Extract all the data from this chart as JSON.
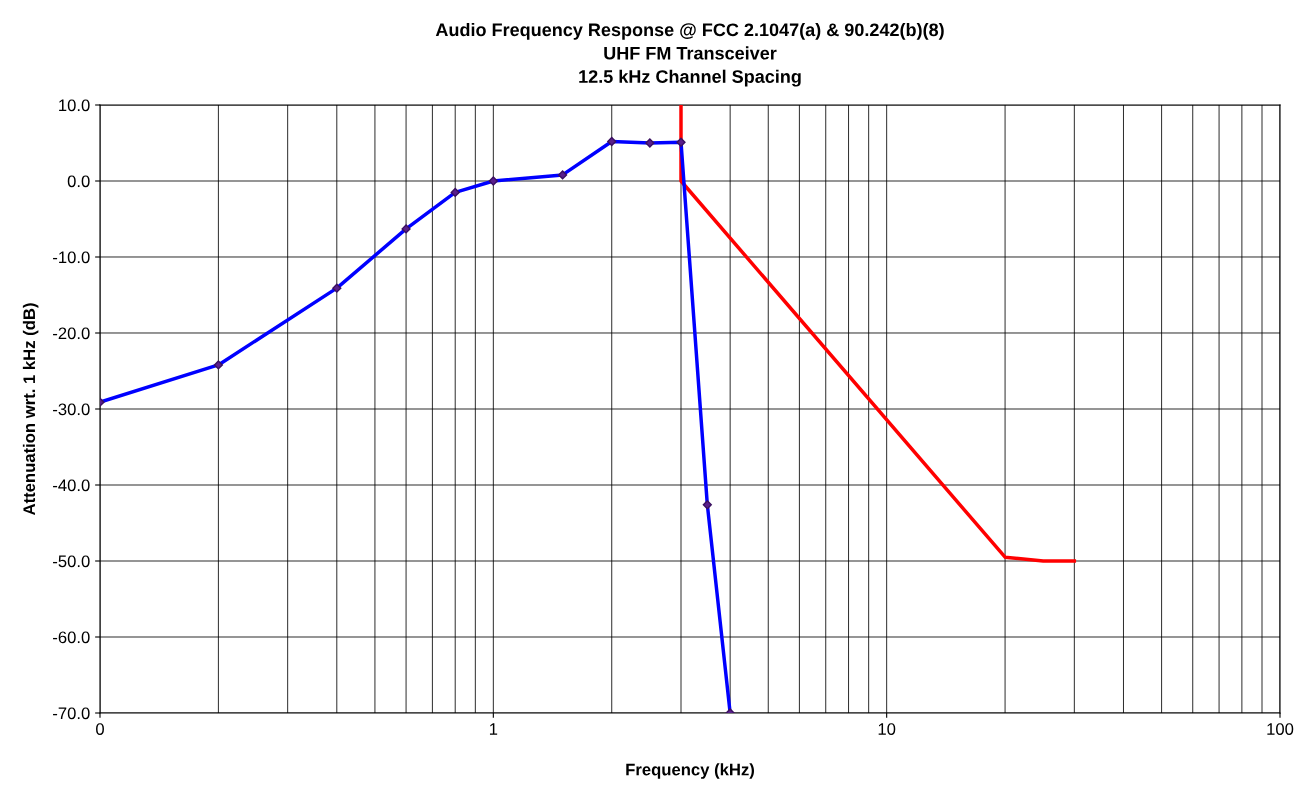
{
  "chart_data": {
    "type": "line",
    "title": "Audio Frequency Response @ FCC 2.1047(a) & 90.242(b)(8)\nUHF FM Transceiver\n12.5 kHz Channel Spacing",
    "xlabel": "Frequency (kHz)",
    "ylabel": "Attenuation wrt. 1 kHz (dB)",
    "log": "x",
    "grid": true,
    "xlim": [
      0.1,
      100
    ],
    "xticks": [
      {
        "value": 0.1,
        "label": "0"
      },
      1,
      10,
      100
    ],
    "ylim": [
      -70,
      10
    ],
    "yticks": [
      {
        "value": 10,
        "label": "10.0"
      },
      {
        "value": 0,
        "label": "0.0"
      },
      {
        "value": -10,
        "label": "-10.0"
      },
      {
        "value": -20,
        "label": "-20.0"
      },
      {
        "value": -30,
        "label": "-30.0"
      },
      {
        "value": -40,
        "label": "-40.0"
      },
      {
        "value": -50,
        "label": "-50.0"
      },
      {
        "value": -60,
        "label": "-60.0"
      },
      {
        "value": -70,
        "label": "-70.0"
      }
    ],
    "series": [
      {
        "color": "#0000ff",
        "marker": "diamond",
        "x": [
          0.1,
          0.2,
          0.4,
          0.6,
          0.8,
          1.0,
          1.5,
          2.0,
          2.5,
          3.0,
          3.5,
          4.0
        ],
        "values": [
          -29.1,
          -24.2,
          -14.1,
          -6.3,
          -1.5,
          0,
          0.8,
          5.2,
          5.0,
          5.1,
          -42.6,
          -70
        ]
      },
      {
        "color": "#ff0000",
        "marker": "none",
        "x": [
          3.0,
          3.0,
          20,
          25,
          30
        ],
        "values": [
          10,
          0,
          -49.5,
          -50,
          -50
        ]
      }
    ]
  }
}
